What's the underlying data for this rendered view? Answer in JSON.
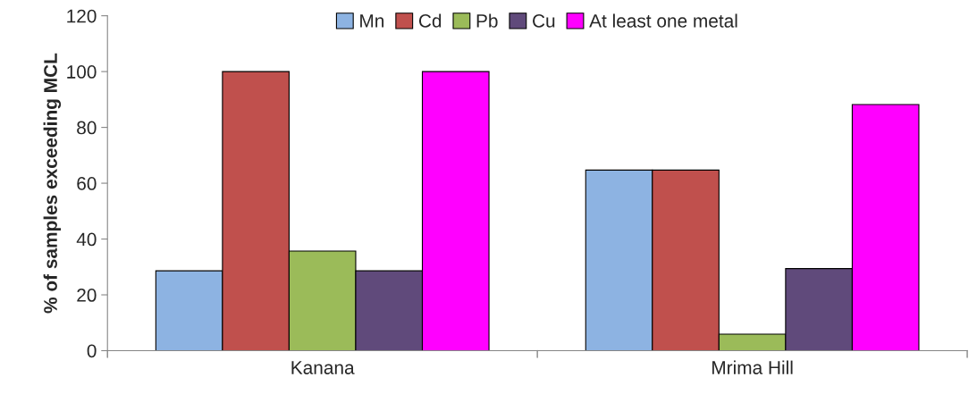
{
  "chart_data": {
    "type": "bar",
    "ylabel": "% of samples exceeding MCL",
    "categories": [
      "Kanana",
      "Mrima Hill"
    ],
    "series": [
      {
        "name": "Mn",
        "color": "#8db3e2",
        "values": [
          28.6,
          64.7
        ]
      },
      {
        "name": "Cd",
        "color": "#c0504d",
        "values": [
          100,
          64.7
        ]
      },
      {
        "name": "Pb",
        "color": "#9bbb59",
        "values": [
          35.7,
          5.9
        ]
      },
      {
        "name": "Cu",
        "color": "#604a7b",
        "values": [
          28.6,
          29.4
        ]
      },
      {
        "name": "At least one metal",
        "color": "#ff00ff",
        "values": [
          100,
          88.2
        ]
      }
    ],
    "ylim": [
      0,
      120
    ],
    "yticks": [
      0,
      20,
      40,
      60,
      80,
      100,
      120
    ],
    "grid": false,
    "legend": "top"
  }
}
